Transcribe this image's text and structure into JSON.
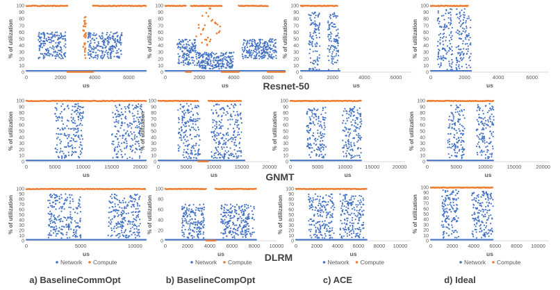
{
  "figure": {
    "y_axis_label": "% of utilization",
    "x_axis_label": "us",
    "legend": {
      "network": "Network",
      "compute": "Compute"
    },
    "colors": {
      "network": "#4472C4",
      "compute": "#ED7D31",
      "axis": "#d9d9d9",
      "tick": "#595959",
      "title": "#404040"
    },
    "row_titles": [
      "Resnet-50",
      "GNMT",
      "DLRM"
    ],
    "column_captions": [
      "a) BaselineCommOpt",
      "b) BaselineCompOpt",
      "c) ACE",
      "d) Ideal"
    ]
  },
  "chart_data": [
    {
      "row": "Resnet-50",
      "column": "a) BaselineCommOpt",
      "type": "scatter",
      "xlim": [
        0,
        7000
      ],
      "xticks": [
        0,
        2000,
        4000,
        6000
      ],
      "ylim": [
        0,
        100
      ],
      "yticks": [
        0,
        10,
        20,
        30,
        40,
        50,
        60,
        70,
        80,
        90,
        100
      ],
      "xlabel": "us",
      "ylabel": "% of utilization",
      "series": [
        {
          "name": "Network",
          "blocks": [
            [
              700,
              2300,
              20,
              60
            ],
            [
              3600,
              5600,
              20,
              60
            ]
          ],
          "baseline_end": 7000
        },
        {
          "name": "Compute",
          "high": [
            [
              0,
              2400
            ],
            [
              3900,
              7000
            ]
          ],
          "low": [
            [
              2400,
              3900
            ]
          ],
          "spike": [
            3300,
            3500,
            20,
            85
          ]
        }
      ]
    },
    {
      "row": "Resnet-50",
      "column": "b) BaselineCompOpt",
      "type": "scatter",
      "xlim": [
        0,
        7000
      ],
      "xticks": [
        0,
        2000,
        4000,
        6000
      ],
      "ylim": [
        0,
        100
      ],
      "yticks": [
        0,
        10,
        20,
        30,
        40,
        50,
        60,
        70,
        80,
        90,
        100
      ],
      "xlabel": "us",
      "ylabel": "% of utilization",
      "series": [
        {
          "name": "Network",
          "blocks": [
            [
              700,
              1800,
              10,
              50
            ],
            [
              1800,
              4000,
              5,
              30
            ],
            [
              4500,
              6500,
              20,
              50
            ]
          ],
          "baseline_end": 7000
        },
        {
          "name": "Compute",
          "high": [
            [
              0,
              1200
            ],
            [
              1500,
              3300
            ],
            [
              4300,
              6000
            ]
          ],
          "low": [
            [
              1200,
              1500
            ],
            [
              3300,
              4300
            ],
            [
              6000,
              7000
            ]
          ],
          "spike": [
            1800,
            3300,
            40,
            98
          ]
        }
      ]
    },
    {
      "row": "Resnet-50",
      "column": "c) ACE",
      "type": "scatter",
      "xlim": [
        0,
        7000
      ],
      "xticks": [
        0,
        2000,
        4000,
        6000
      ],
      "ylim": [
        0,
        100
      ],
      "yticks": [
        0,
        10,
        20,
        30,
        40,
        50,
        60,
        70,
        80,
        90,
        100
      ],
      "xlabel": "us",
      "ylabel": "% of utilization",
      "series": [
        {
          "name": "Network",
          "blocks": [
            [
              500,
              1200,
              3,
              90
            ],
            [
              1700,
              2400,
              3,
              90
            ]
          ],
          "baseline_end": 2500
        },
        {
          "name": "Compute",
          "high": [
            [
              0,
              2300
            ]
          ],
          "low": [],
          "spike": null
        }
      ]
    },
    {
      "row": "Resnet-50",
      "column": "d) Ideal",
      "type": "scatter",
      "xlim": [
        0,
        7000
      ],
      "xticks": [
        0,
        2000,
        4000,
        6000
      ],
      "ylim": [
        0,
        100
      ],
      "yticks": [
        0,
        10,
        20,
        30,
        40,
        50,
        60,
        70,
        80,
        90,
        100
      ],
      "xlabel": "us",
      "ylabel": "% of utilization",
      "series": [
        {
          "name": "Network",
          "blocks": [
            [
              400,
              1300,
              3,
              95
            ],
            [
              1500,
              2400,
              3,
              95
            ]
          ],
          "baseline_end": 2400
        },
        {
          "name": "Compute",
          "high": [
            [
              0,
              2200
            ]
          ],
          "low": [],
          "spike": null
        }
      ]
    },
    {
      "row": "GNMT",
      "column": "a) BaselineCommOpt",
      "type": "scatter",
      "xlim": [
        0,
        21000
      ],
      "xticks": [
        0,
        5000,
        10000,
        15000,
        20000
      ],
      "ylim": [
        0,
        100
      ],
      "yticks": [
        0,
        10,
        20,
        30,
        40,
        50,
        60,
        70,
        80,
        90,
        100
      ],
      "xlabel": "us",
      "ylabel": "% of utilization",
      "series": [
        {
          "name": "Network",
          "blocks": [
            [
              5000,
              10000,
              5,
              95
            ],
            [
              15000,
              20500,
              5,
              95
            ]
          ],
          "baseline_end": 21000
        },
        {
          "name": "Compute",
          "high": [
            [
              0,
              21000
            ]
          ],
          "low": [],
          "spike": null
        }
      ]
    },
    {
      "row": "GNMT",
      "column": "b) BaselineCompOpt",
      "type": "scatter",
      "xlim": [
        0,
        20000
      ],
      "xticks": [
        0,
        5000,
        10000,
        15000,
        20000
      ],
      "ylim": [
        0,
        100
      ],
      "yticks": [
        0,
        10,
        20,
        30,
        40,
        50,
        60,
        70,
        80,
        90,
        100
      ],
      "xlabel": "us",
      "ylabel": "% of utilization",
      "series": [
        {
          "name": "Network",
          "blocks": [
            [
              3500,
              7500,
              5,
              95
            ],
            [
              9500,
              15000,
              5,
              95
            ]
          ],
          "baseline_end": 15500
        },
        {
          "name": "Compute",
          "high": [
            [
              0,
              7200
            ],
            [
              9000,
              15000
            ]
          ],
          "low": [
            [
              7200,
              9000
            ]
          ],
          "spike": null
        }
      ]
    },
    {
      "row": "GNMT",
      "column": "c) ACE",
      "type": "scatter",
      "xlim": [
        0,
        21000
      ],
      "xticks": [
        0,
        5000,
        10000,
        15000,
        20000
      ],
      "ylim": [
        0,
        100
      ],
      "yticks": [
        0,
        10,
        20,
        30,
        40,
        50,
        60,
        70,
        80,
        90,
        100
      ],
      "xlabel": "us",
      "ylabel": "% of utilization",
      "series": [
        {
          "name": "Network",
          "blocks": [
            [
              3000,
              6500,
              5,
              90
            ],
            [
              9500,
              13000,
              5,
              90
            ]
          ],
          "baseline_end": 13000
        },
        {
          "name": "Compute",
          "high": [
            [
              0,
              13000
            ]
          ],
          "low": [],
          "spike": null
        }
      ]
    },
    {
      "row": "GNMT",
      "column": "d) Ideal",
      "type": "scatter",
      "xlim": [
        0,
        21000
      ],
      "xticks": [
        0,
        5000,
        10000,
        15000,
        20000
      ],
      "ylim": [
        0,
        100
      ],
      "yticks": [
        0,
        10,
        20,
        30,
        40,
        50,
        60,
        70,
        80,
        90,
        100
      ],
      "xlabel": "us",
      "ylabel": "% of utilization",
      "series": [
        {
          "name": "Network",
          "blocks": [
            [
              3500,
              6500,
              5,
              95
            ],
            [
              8500,
              11500,
              5,
              95
            ]
          ],
          "baseline_end": 11500
        },
        {
          "name": "Compute",
          "high": [
            [
              0,
              11500
            ]
          ],
          "low": [],
          "spike": null
        }
      ]
    },
    {
      "row": "DLRM",
      "column": "a) BaselineCommOpt",
      "type": "scatter",
      "xlim": [
        0,
        11000
      ],
      "xticks": [
        0,
        5000,
        10000
      ],
      "ylim": [
        0,
        100
      ],
      "yticks": [
        0,
        10,
        20,
        30,
        40,
        50,
        60,
        70,
        80,
        90,
        100
      ],
      "xlabel": "us",
      "ylabel": "% of utilization",
      "series": [
        {
          "name": "Network",
          "blocks": [
            [
              2000,
              5000,
              5,
              90
            ],
            [
              7500,
              10500,
              5,
              90
            ]
          ],
          "baseline_end": 11000
        },
        {
          "name": "Compute",
          "high": [
            [
              0,
              11000
            ]
          ],
          "low": [],
          "spike": null
        }
      ]
    },
    {
      "row": "DLRM",
      "column": "b) BaselineCompOpt",
      "type": "scatter",
      "xlim": [
        0,
        10000
      ],
      "xticks": [
        0,
        2000,
        4000,
        6000,
        8000,
        10000
      ],
      "ylim": [
        0,
        100
      ],
      "yticks": [
        0,
        20,
        40,
        60,
        80,
        100
      ],
      "xlabel": "us",
      "ylabel": "% of utilization",
      "series": [
        {
          "name": "Network",
          "blocks": [
            [
              1500,
              3500,
              5,
              70
            ],
            [
              5000,
              8000,
              5,
              70
            ]
          ],
          "baseline_end": 8200
        },
        {
          "name": "Compute",
          "high": [
            [
              0,
              3700
            ],
            [
              4500,
              8200
            ]
          ],
          "low": [
            [
              3700,
              4500
            ]
          ],
          "spike": null
        }
      ]
    },
    {
      "row": "DLRM",
      "column": "c) ACE",
      "type": "scatter",
      "xlim": [
        0,
        11000
      ],
      "xticks": [
        0,
        2000,
        4000,
        6000,
        8000,
        10000
      ],
      "ylim": [
        0,
        100
      ],
      "yticks": [
        0,
        10,
        20,
        30,
        40,
        50,
        60,
        70,
        80,
        90,
        100
      ],
      "xlabel": "us",
      "ylabel": "% of utilization",
      "series": [
        {
          "name": "Network",
          "blocks": [
            [
              1200,
              3700,
              5,
              90
            ],
            [
              4200,
              6500,
              5,
              90
            ]
          ],
          "baseline_end": 6800
        },
        {
          "name": "Compute",
          "high": [
            [
              0,
              6800
            ]
          ],
          "low": [],
          "spike": null
        }
      ]
    },
    {
      "row": "DLRM",
      "column": "d) Ideal",
      "type": "scatter",
      "xlim": [
        0,
        11000
      ],
      "xticks": [
        0,
        2000,
        4000,
        6000,
        8000,
        10000
      ],
      "ylim": [
        0,
        100
      ],
      "yticks": [
        0,
        10,
        20,
        30,
        40,
        50,
        60,
        70,
        80,
        90,
        100
      ],
      "xlabel": "us",
      "ylabel": "% of utilization",
      "series": [
        {
          "name": "Network",
          "blocks": [
            [
              1000,
              2600,
              5,
              95
            ],
            [
              3800,
              5800,
              5,
              95
            ]
          ],
          "baseline_end": 5800
        },
        {
          "name": "Compute",
          "high": [
            [
              0,
              5800
            ]
          ],
          "low": [],
          "spike": null
        }
      ]
    }
  ]
}
